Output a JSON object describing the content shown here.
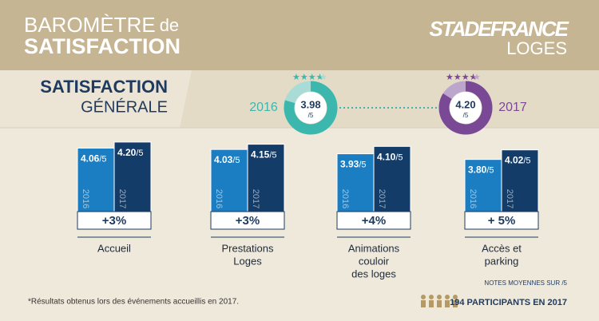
{
  "header": {
    "title_line1": "BAROMÈTRE",
    "title_line1_small": "de",
    "title_line2": "SATISFACTION",
    "logo_line1": "STADEFRANCE",
    "logo_line2": "LOGES"
  },
  "general": {
    "title": "SATISFACTION",
    "subtitle": "GÉNÉRALE",
    "years": [
      "2016",
      "2017"
    ],
    "scores": [
      3.98,
      4.2
    ],
    "score_labels": [
      "3.98",
      "4.20"
    ],
    "max": 5,
    "colors": [
      "#3bb7ae",
      "#7a4996"
    ],
    "light_colors": [
      "#a9dcd7",
      "#bda6cc"
    ]
  },
  "unit": "/5",
  "chart_data": [
    {
      "type": "bar",
      "title": [
        "Accueil"
      ],
      "categories": [
        "2016",
        "2017"
      ],
      "values": [
        4.06,
        4.2
      ],
      "value_labels": [
        "4.06",
        "4.20"
      ],
      "change": "+3%",
      "colors": [
        "#1b7dc2",
        "#143c68"
      ],
      "ylim": [
        2.6,
        4.4
      ]
    },
    {
      "type": "bar",
      "title": [
        "Prestations",
        "Loges"
      ],
      "categories": [
        "2016",
        "2017"
      ],
      "values": [
        4.03,
        4.15
      ],
      "value_labels": [
        "4.03",
        "4.15"
      ],
      "change": "+3%",
      "colors": [
        "#1b7dc2",
        "#143c68"
      ],
      "ylim": [
        2.6,
        4.4
      ]
    },
    {
      "type": "bar",
      "title": [
        "Animations",
        "couloir",
        "des loges"
      ],
      "categories": [
        "2016",
        "2017"
      ],
      "values": [
        3.93,
        4.1
      ],
      "value_labels": [
        "3.93",
        "4.10"
      ],
      "change": "+4%",
      "colors": [
        "#1b7dc2",
        "#143c68"
      ],
      "ylim": [
        2.6,
        4.4
      ]
    },
    {
      "type": "bar",
      "title": [
        "Accès et",
        "parking"
      ],
      "categories": [
        "2016",
        "2017"
      ],
      "values": [
        3.8,
        4.02
      ],
      "value_labels": [
        "3.80",
        "4.02"
      ],
      "change": "+ 5%",
      "colors": [
        "#1b7dc2",
        "#143c68"
      ],
      "ylim": [
        2.6,
        4.4
      ]
    }
  ],
  "footer": {
    "note": "*Résultats obtenus lors des événements accueillis en 2017.",
    "scale_note": "NOTES MOYENNES SUR /5",
    "participants": "194 PARTICIPANTS EN 2017"
  }
}
